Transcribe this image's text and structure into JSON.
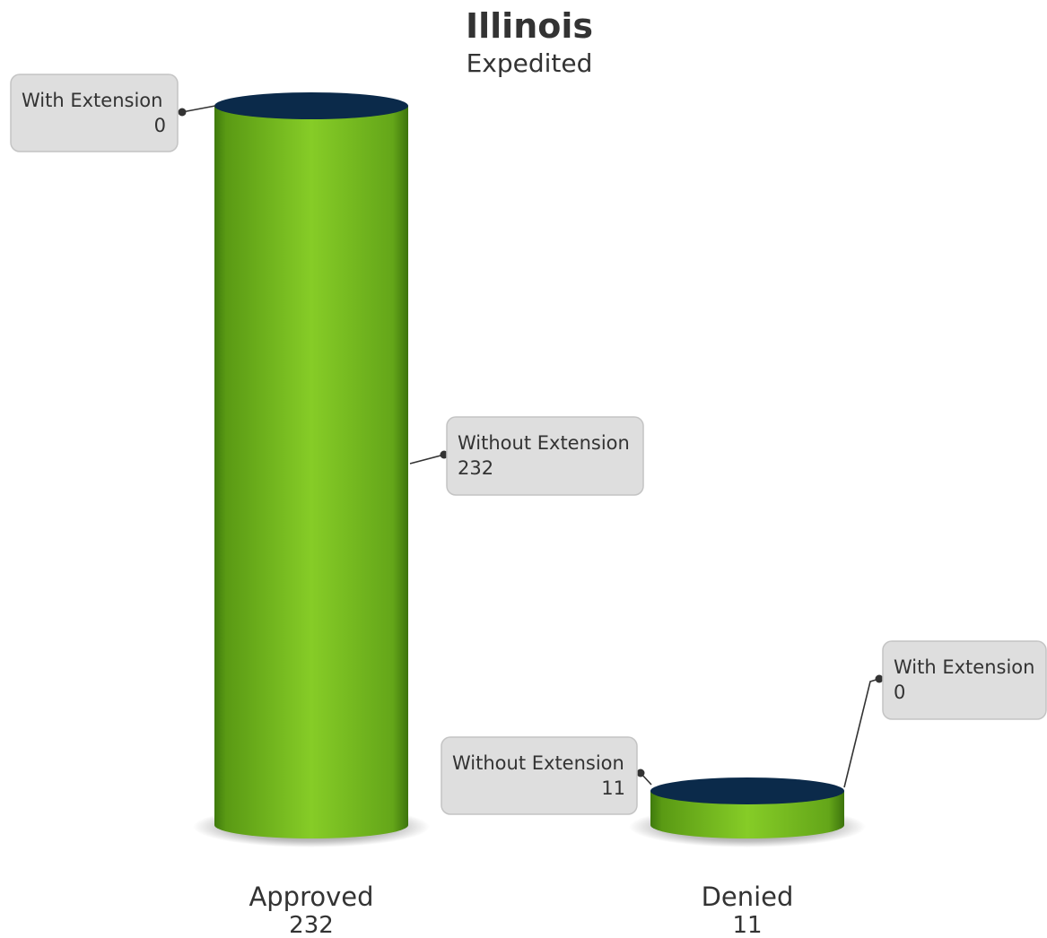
{
  "chart_data": {
    "type": "bar",
    "style": "3d-cylinder",
    "title": "Illinois",
    "subtitle": "Expedited",
    "categories": [
      "Approved",
      "Denied"
    ],
    "totals": [
      232,
      11
    ],
    "series": [
      {
        "name": "Without Extension",
        "values": [
          232,
          11
        ]
      },
      {
        "name": "With Extension",
        "values": [
          0,
          0
        ]
      }
    ],
    "colors": {
      "body": "#7dc324",
      "top": "#0b2a4a"
    },
    "grid": false,
    "legend": "none"
  }
}
